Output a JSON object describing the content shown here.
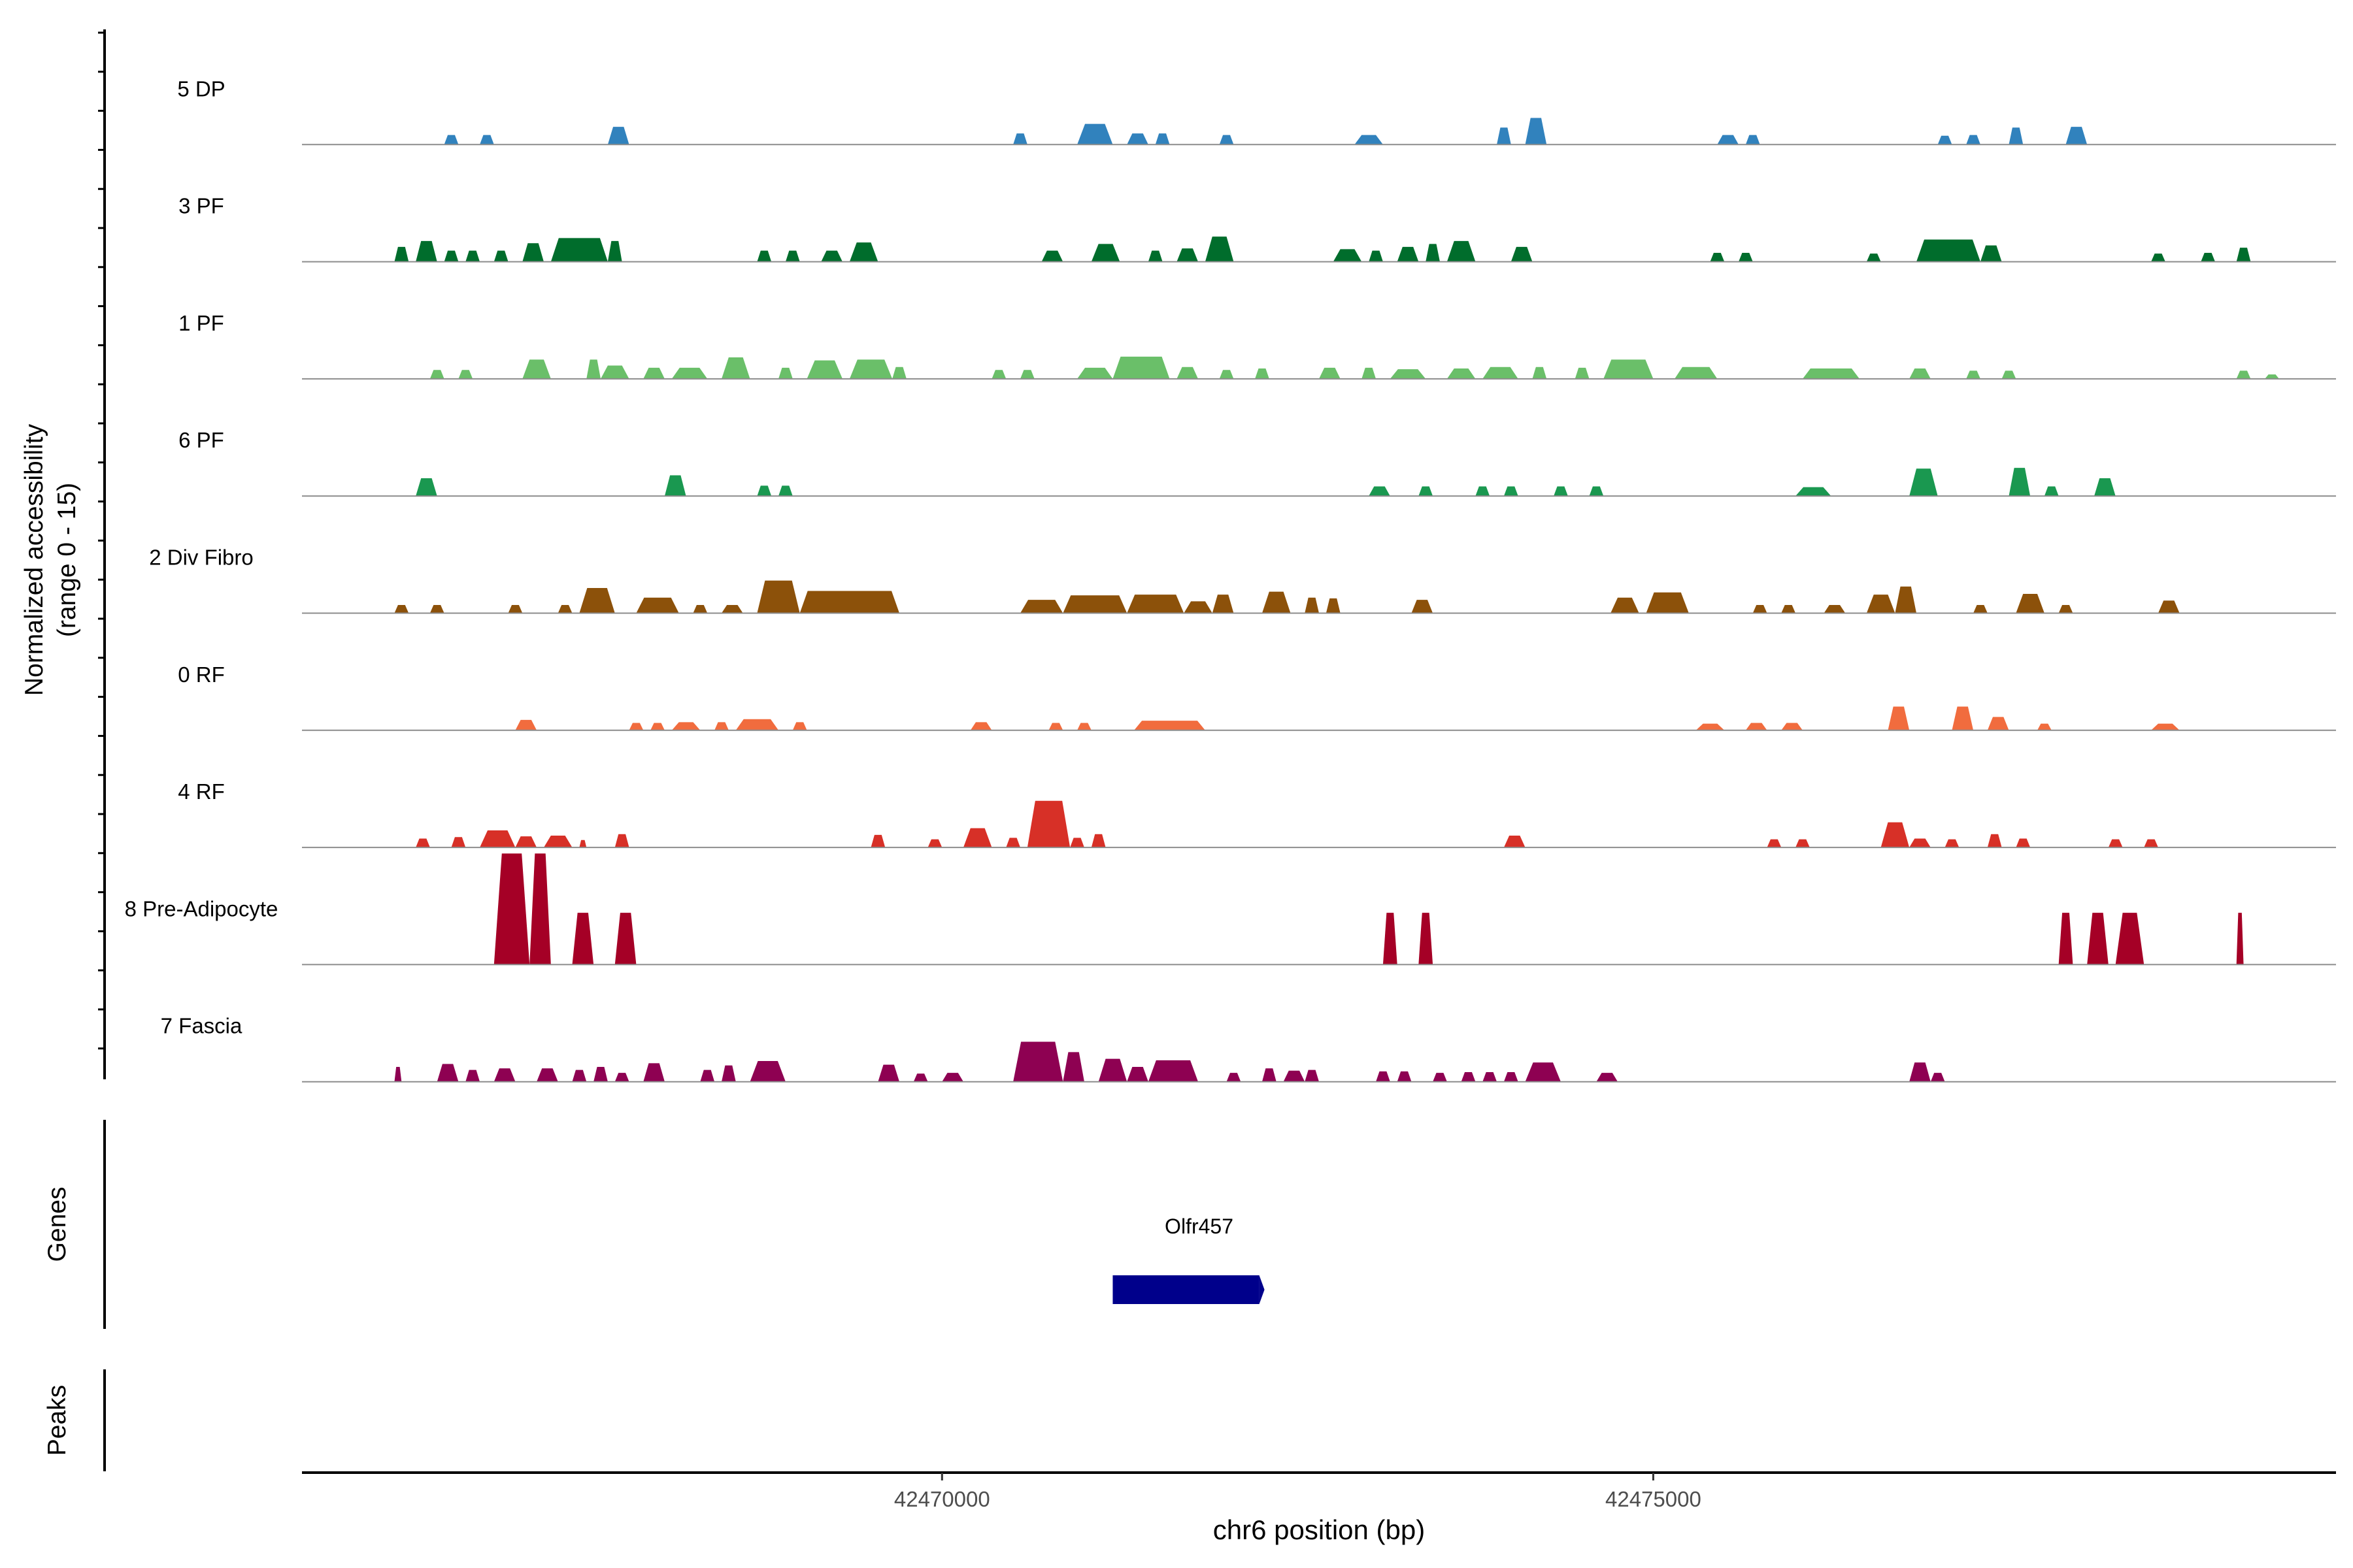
{
  "chart_data": {
    "type": "area",
    "title": "",
    "ylabel_line1": "Normalized accessibility",
    "ylabel_line2": "(range 0 - 15)",
    "xlabel": "chr6 position (bp)",
    "xlim": [
      42465500,
      42479800
    ],
    "ylim": [
      0,
      15
    ],
    "xticks": [
      42470000,
      42475000
    ],
    "xtick_labels": [
      "42470000",
      "42475000"
    ],
    "grid": false,
    "tracks": [
      {
        "name": "5 DP",
        "color": "#3182bd",
        "peaks": [
          [
            42466500,
            42466600,
            1.3
          ],
          [
            42466750,
            42466850,
            1.3
          ],
          [
            42467650,
            42467800,
            2.4
          ],
          [
            42470500,
            42470600,
            1.5
          ],
          [
            42470950,
            42471200,
            2.8
          ],
          [
            42471300,
            42471450,
            1.5
          ],
          [
            42471500,
            42471600,
            1.5
          ],
          [
            42471950,
            42472050,
            1.3
          ],
          [
            42472900,
            42473100,
            1.3
          ],
          [
            42473900,
            42474000,
            2.3
          ],
          [
            42474100,
            42474250,
            3.6
          ],
          [
            42475450,
            42475600,
            1.3
          ],
          [
            42475650,
            42475750,
            1.3
          ],
          [
            42477000,
            42477100,
            1.2
          ],
          [
            42477200,
            42477300,
            1.3
          ],
          [
            42477500,
            42477600,
            2.3
          ],
          [
            42477900,
            42478050,
            2.4
          ]
        ]
      },
      {
        "name": "3 PF",
        "color": "#006d2c",
        "peaks": [
          [
            42466150,
            42466250,
            2.0
          ],
          [
            42466300,
            42466450,
            2.8
          ],
          [
            42466500,
            42466600,
            1.5
          ],
          [
            42466650,
            42466750,
            1.5
          ],
          [
            42466850,
            42466950,
            1.5
          ],
          [
            42467050,
            42467200,
            2.5
          ],
          [
            42467250,
            42467650,
            3.2
          ],
          [
            42467650,
            42467750,
            2.8
          ],
          [
            42468700,
            42468800,
            1.5
          ],
          [
            42468900,
            42469000,
            1.5
          ],
          [
            42469150,
            42469300,
            1.5
          ],
          [
            42469350,
            42469550,
            2.6
          ],
          [
            42470700,
            42470850,
            1.5
          ],
          [
            42471050,
            42471250,
            2.4
          ],
          [
            42471450,
            42471550,
            1.5
          ],
          [
            42471650,
            42471800,
            1.8
          ],
          [
            42471850,
            42472050,
            3.4
          ],
          [
            42472750,
            42472950,
            1.7
          ],
          [
            42473000,
            42473100,
            1.5
          ],
          [
            42473200,
            42473350,
            2.0
          ],
          [
            42473400,
            42473500,
            2.4
          ],
          [
            42473550,
            42473750,
            2.8
          ],
          [
            42474000,
            42474150,
            2.0
          ],
          [
            42475400,
            42475500,
            1.2
          ],
          [
            42475600,
            42475700,
            1.2
          ],
          [
            42476500,
            42476600,
            1.1
          ],
          [
            42476850,
            42477300,
            3.0
          ],
          [
            42477300,
            42477450,
            2.2
          ],
          [
            42478500,
            42478600,
            1.1
          ],
          [
            42478850,
            42478950,
            1.2
          ],
          [
            42479100,
            42479200,
            1.9
          ]
        ]
      },
      {
        "name": "1 PF",
        "color": "#6abf69",
        "peaks": [
          [
            42466400,
            42466500,
            1.2
          ],
          [
            42466600,
            42466700,
            1.2
          ],
          [
            42467050,
            42467250,
            2.6
          ],
          [
            42467500,
            42467600,
            2.6
          ],
          [
            42467600,
            42467800,
            1.8
          ],
          [
            42467900,
            42468050,
            1.5
          ],
          [
            42468100,
            42468350,
            1.5
          ],
          [
            42468450,
            42468650,
            2.9
          ],
          [
            42468850,
            42468950,
            1.5
          ],
          [
            42469050,
            42469300,
            2.5
          ],
          [
            42469350,
            42469650,
            2.6
          ],
          [
            42469650,
            42469750,
            1.6
          ],
          [
            42470350,
            42470450,
            1.2
          ],
          [
            42470550,
            42470650,
            1.2
          ],
          [
            42470950,
            42471200,
            1.5
          ],
          [
            42471200,
            42471600,
            3.0
          ],
          [
            42471650,
            42471800,
            1.6
          ],
          [
            42471950,
            42472050,
            1.2
          ],
          [
            42472200,
            42472300,
            1.4
          ],
          [
            42472650,
            42472800,
            1.5
          ],
          [
            42472950,
            42473050,
            1.5
          ],
          [
            42473150,
            42473400,
            1.3
          ],
          [
            42473550,
            42473750,
            1.4
          ],
          [
            42473800,
            42474050,
            1.6
          ],
          [
            42474150,
            42474250,
            1.6
          ],
          [
            42474450,
            42474550,
            1.5
          ],
          [
            42474650,
            42475000,
            2.6
          ],
          [
            42475150,
            42475450,
            1.6
          ],
          [
            42476050,
            42476450,
            1.4
          ],
          [
            42476800,
            42476950,
            1.4
          ],
          [
            42477200,
            42477300,
            1.1
          ],
          [
            42477450,
            42477550,
            1.1
          ],
          [
            42479100,
            42479200,
            1.1
          ],
          [
            42479300,
            42479400,
            0.6
          ]
        ]
      },
      {
        "name": "6 PF",
        "color": "#1a9850",
        "peaks": [
          [
            42466300,
            42466450,
            2.4
          ],
          [
            42468050,
            42468200,
            2.8
          ],
          [
            42468700,
            42468800,
            1.4
          ],
          [
            42468850,
            42468950,
            1.4
          ],
          [
            42473000,
            42473150,
            1.3
          ],
          [
            42473350,
            42473450,
            1.3
          ],
          [
            42473750,
            42473850,
            1.3
          ],
          [
            42473950,
            42474050,
            1.3
          ],
          [
            42474300,
            42474400,
            1.3
          ],
          [
            42474550,
            42474650,
            1.3
          ],
          [
            42476000,
            42476250,
            1.2
          ],
          [
            42476800,
            42477000,
            3.7
          ],
          [
            42477500,
            42477650,
            3.8
          ],
          [
            42477750,
            42477850,
            1.3
          ],
          [
            42478100,
            42478250,
            2.4
          ]
        ]
      },
      {
        "name": "2 Div Fibro",
        "color": "#8c510a",
        "peaks": [
          [
            42466150,
            42466250,
            1.1
          ],
          [
            42466400,
            42466500,
            1.1
          ],
          [
            42466950,
            42467050,
            1.1
          ],
          [
            42467300,
            42467400,
            1.1
          ],
          [
            42467450,
            42467700,
            3.4
          ],
          [
            42467850,
            42468150,
            2.1
          ],
          [
            42468250,
            42468350,
            1.1
          ],
          [
            42468450,
            42468600,
            1.1
          ],
          [
            42468700,
            42469000,
            4.4
          ],
          [
            42469000,
            42469700,
            3.0
          ],
          [
            42470550,
            42470850,
            1.8
          ],
          [
            42470850,
            42471300,
            2.4
          ],
          [
            42471300,
            42471700,
            2.5
          ],
          [
            42471700,
            42471900,
            1.6
          ],
          [
            42471900,
            42472050,
            2.5
          ],
          [
            42472250,
            42472450,
            2.9
          ],
          [
            42472550,
            42472650,
            2.1
          ],
          [
            42472700,
            42472800,
            2.0
          ],
          [
            42473300,
            42473450,
            1.8
          ],
          [
            42474700,
            42474900,
            2.1
          ],
          [
            42474950,
            42475250,
            2.8
          ],
          [
            42475700,
            42475800,
            1.1
          ],
          [
            42475900,
            42476000,
            1.1
          ],
          [
            42476200,
            42476350,
            1.1
          ],
          [
            42476500,
            42476700,
            2.5
          ],
          [
            42476700,
            42476850,
            3.6
          ],
          [
            42477250,
            42477350,
            1.1
          ],
          [
            42477550,
            42477750,
            2.6
          ],
          [
            42477850,
            42477950,
            1.1
          ],
          [
            42478550,
            42478700,
            1.7
          ]
        ]
      },
      {
        "name": "0 RF",
        "color": "#f16c3e",
        "peaks": [
          [
            42467000,
            42467150,
            1.4
          ],
          [
            42467800,
            42467900,
            1.0
          ],
          [
            42467950,
            42468050,
            1.0
          ],
          [
            42468100,
            42468300,
            1.1
          ],
          [
            42468400,
            42468500,
            1.1
          ],
          [
            42468550,
            42468850,
            1.5
          ],
          [
            42468950,
            42469050,
            1.1
          ],
          [
            42470200,
            42470350,
            1.1
          ],
          [
            42470750,
            42470850,
            1.0
          ],
          [
            42470950,
            42471050,
            1.0
          ],
          [
            42471350,
            42471850,
            1.3
          ],
          [
            42475300,
            42475500,
            0.9
          ],
          [
            42475650,
            42475800,
            1.0
          ],
          [
            42475900,
            42476050,
            1.0
          ],
          [
            42476650,
            42476800,
            3.2
          ],
          [
            42477100,
            42477250,
            3.2
          ],
          [
            42477350,
            42477500,
            1.8
          ],
          [
            42477700,
            42477800,
            0.9
          ],
          [
            42478500,
            42478700,
            0.9
          ]
        ]
      },
      {
        "name": "4 RF",
        "color": "#d73027",
        "peaks": [
          [
            42466300,
            42466400,
            1.2
          ],
          [
            42466550,
            42466650,
            1.4
          ],
          [
            42466750,
            42467000,
            2.3
          ],
          [
            42467000,
            42467150,
            1.5
          ],
          [
            42467200,
            42467400,
            1.6
          ],
          [
            42467450,
            42467500,
            1.0
          ],
          [
            42467700,
            42467800,
            1.8
          ],
          [
            42469500,
            42469600,
            1.7
          ],
          [
            42469900,
            42470000,
            1.1
          ],
          [
            42470150,
            42470350,
            2.6
          ],
          [
            42470450,
            42470550,
            1.3
          ],
          [
            42470600,
            42470900,
            6.3
          ],
          [
            42470900,
            42471000,
            1.3
          ],
          [
            42471050,
            42471150,
            1.8
          ],
          [
            42473950,
            42474100,
            1.6
          ],
          [
            42475800,
            42475900,
            1.1
          ],
          [
            42476000,
            42476100,
            1.1
          ],
          [
            42476600,
            42476800,
            3.4
          ],
          [
            42476800,
            42476950,
            1.2
          ],
          [
            42477050,
            42477150,
            1.1
          ],
          [
            42477350,
            42477450,
            1.8
          ],
          [
            42477550,
            42477650,
            1.2
          ],
          [
            42478200,
            42478300,
            1.1
          ],
          [
            42478450,
            42478550,
            1.1
          ]
        ]
      },
      {
        "name": "8 Pre-Adipocyte",
        "color": "#a50026",
        "peaks": [
          [
            42466850,
            42467100,
            15
          ],
          [
            42467100,
            42467250,
            15
          ],
          [
            42467400,
            42467550,
            7
          ],
          [
            42467700,
            42467850,
            7
          ],
          [
            42473100,
            42473200,
            7
          ],
          [
            42473350,
            42473450,
            7
          ],
          [
            42477850,
            42477950,
            7
          ],
          [
            42478050,
            42478200,
            7
          ],
          [
            42478250,
            42478450,
            7
          ],
          [
            42479100,
            42479150,
            7
          ]
        ]
      },
      {
        "name": "7 Fascia",
        "color": "#8e0152",
        "peaks": [
          [
            42466150,
            42466200,
            2.0
          ],
          [
            42466450,
            42466600,
            2.4
          ],
          [
            42466650,
            42466750,
            1.6
          ],
          [
            42466850,
            42467000,
            1.8
          ],
          [
            42467150,
            42467300,
            1.8
          ],
          [
            42467400,
            42467500,
            1.6
          ],
          [
            42467550,
            42467650,
            2.0
          ],
          [
            42467700,
            42467800,
            1.2
          ],
          [
            42467900,
            42468050,
            2.5
          ],
          [
            42468300,
            42468400,
            1.6
          ],
          [
            42468450,
            42468550,
            2.2
          ],
          [
            42468650,
            42468900,
            2.8
          ],
          [
            42469550,
            42469700,
            2.3
          ],
          [
            42469800,
            42469900,
            1.1
          ],
          [
            42470000,
            42470150,
            1.2
          ],
          [
            42470500,
            42470850,
            5.4
          ],
          [
            42470850,
            42471000,
            4.0
          ],
          [
            42471100,
            42471300,
            3.1
          ],
          [
            42471300,
            42471450,
            2.0
          ],
          [
            42471450,
            42471800,
            2.9
          ],
          [
            42472000,
            42472100,
            1.2
          ],
          [
            42472250,
            42472350,
            1.8
          ],
          [
            42472400,
            42472550,
            1.5
          ],
          [
            42472550,
            42472650,
            1.6
          ],
          [
            42473050,
            42473150,
            1.4
          ],
          [
            42473200,
            42473300,
            1.4
          ],
          [
            42473450,
            42473550,
            1.2
          ],
          [
            42473650,
            42473750,
            1.3
          ],
          [
            42473800,
            42473900,
            1.3
          ],
          [
            42473950,
            42474050,
            1.3
          ],
          [
            42474100,
            42474350,
            2.6
          ],
          [
            42474600,
            42474750,
            1.2
          ],
          [
            42476800,
            42476950,
            2.6
          ],
          [
            42476950,
            42477050,
            1.2
          ]
        ]
      }
    ]
  },
  "genes": {
    "label": "Genes",
    "items": [
      {
        "name": "Olfr457",
        "start": 42471200,
        "end": 42472230,
        "color": "#00008b"
      }
    ]
  },
  "peaks_panel": {
    "label": "Peaks"
  }
}
